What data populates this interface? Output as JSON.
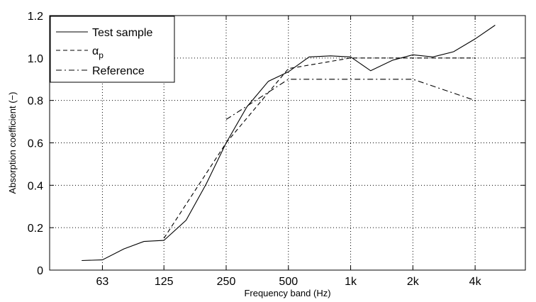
{
  "chart_data": {
    "type": "line",
    "xlabel": "Frequency band (Hz)",
    "ylabel": "Absorption coefficient (−)",
    "x_scale": "log",
    "x_ticks": [
      {
        "value": 63,
        "label": "63"
      },
      {
        "value": 125,
        "label": "125"
      },
      {
        "value": 250,
        "label": "250"
      },
      {
        "value": 500,
        "label": "500"
      },
      {
        "value": 1000,
        "label": "1k"
      },
      {
        "value": 2000,
        "label": "2k"
      },
      {
        "value": 4000,
        "label": "4k"
      }
    ],
    "xlim": [
      35,
      7000
    ],
    "y_ticks": [
      {
        "value": 0,
        "label": "0"
      },
      {
        "value": 0.2,
        "label": "0.2"
      },
      {
        "value": 0.4,
        "label": "0.4"
      },
      {
        "value": 0.6,
        "label": "0.6"
      },
      {
        "value": 0.8,
        "label": "0.8"
      },
      {
        "value": 1.0,
        "label": "1.0"
      },
      {
        "value": 1.2,
        "label": "1.2"
      }
    ],
    "ylim": [
      0,
      1.2
    ],
    "grid": true,
    "legend_position": "top-left",
    "series": [
      {
        "name": "Test sample",
        "style": "solid",
        "points": [
          [
            50,
            0.045
          ],
          [
            63,
            0.048
          ],
          [
            80,
            0.1
          ],
          [
            100,
            0.135
          ],
          [
            125,
            0.14
          ],
          [
            160,
            0.235
          ],
          [
            200,
            0.405
          ],
          [
            250,
            0.6
          ],
          [
            315,
            0.77
          ],
          [
            400,
            0.89
          ],
          [
            500,
            0.935
          ],
          [
            630,
            1.005
          ],
          [
            800,
            1.01
          ],
          [
            1000,
            1.005
          ],
          [
            1250,
            0.94
          ],
          [
            1600,
            0.99
          ],
          [
            2000,
            1.015
          ],
          [
            2500,
            1.005
          ],
          [
            3150,
            1.03
          ],
          [
            4000,
            1.09
          ],
          [
            5000,
            1.155
          ]
        ]
      },
      {
        "name": "α",
        "name_subscript": "p",
        "style": "dashed",
        "points": [
          [
            125,
            0.15
          ],
          [
            250,
            0.6
          ],
          [
            500,
            0.95
          ],
          [
            1000,
            1.0
          ],
          [
            2000,
            1.0
          ],
          [
            4000,
            1.0
          ]
        ]
      },
      {
        "name": "Reference",
        "style": "dashdot",
        "points": [
          [
            250,
            0.71
          ],
          [
            500,
            0.9
          ],
          [
            1000,
            0.9
          ],
          [
            2000,
            0.9
          ],
          [
            4000,
            0.8
          ]
        ]
      }
    ]
  }
}
